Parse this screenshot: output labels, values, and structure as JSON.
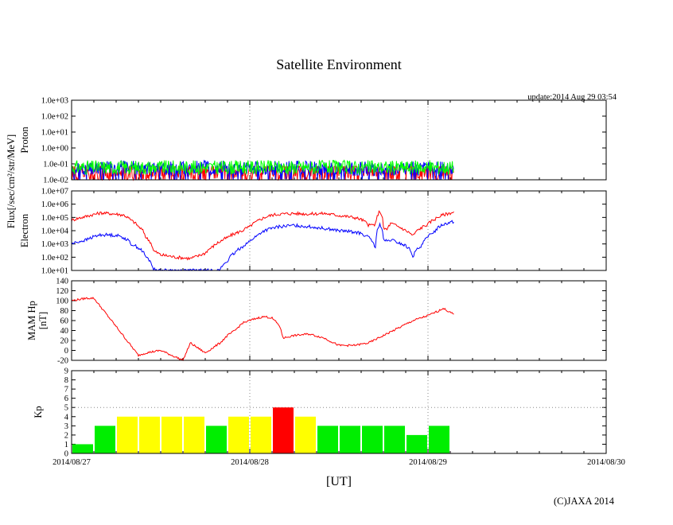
{
  "title": "Satellite Environment",
  "update": "update:2014 Aug 29 03:54",
  "copyright": "(C)JAXA 2014",
  "x_axis": {
    "label": "[UT]",
    "ticks": [
      "2014/08/27",
      "2014/08/28",
      "2014/08/29",
      "2014/08/30"
    ],
    "range_hours": [
      0,
      72
    ]
  },
  "shared_ylabel": "Flux[/sec/cm²/str/MeV]",
  "colors": {
    "red": "#ff0000",
    "blue": "#0000ff",
    "green": "#00ff00",
    "kp_green": "#00ee00",
    "kp_yellow": "#ffff00",
    "kp_red": "#ff0000"
  },
  "chart_data": [
    {
      "type": "line",
      "name": "proton",
      "ylabel": "Proton",
      "yscale": "log",
      "ylim": [
        0.01,
        1000
      ],
      "ytick_labels": [
        "1.0e-02",
        "1.0e-01",
        "1.0e+00",
        "1.0e+01",
        "1.0e+02",
        "1.0e+03"
      ],
      "grid": "dotted vertical at day boundaries",
      "x_hours": [
        0,
        6,
        12,
        18,
        24,
        30,
        36,
        42,
        48,
        51.5
      ],
      "series": [
        {
          "color": "#ff0000",
          "values": [
            0.02,
            0.02,
            0.02,
            0.02,
            0.02,
            0.02,
            0.02,
            0.02,
            0.02,
            0.02
          ]
        },
        {
          "color": "#0000ff",
          "values": [
            0.05,
            0.06,
            0.05,
            0.06,
            0.05,
            0.06,
            0.05,
            0.05,
            0.05,
            0.05
          ]
        },
        {
          "color": "#00ff00",
          "values": [
            0.06,
            0.06,
            0.06,
            0.06,
            0.06,
            0.06,
            0.06,
            0.06,
            0.06,
            0.06
          ]
        }
      ]
    },
    {
      "type": "line",
      "name": "electron",
      "ylabel": "Electron",
      "yscale": "log",
      "ylim": [
        10,
        10000000
      ],
      "ytick_labels": [
        "1.0e+01",
        "1.0e+02",
        "1.0e+03",
        "1.0e+04",
        "1.0e+05",
        "1.0e+06",
        "1.0e+07"
      ],
      "x_hours": [
        0,
        2,
        4,
        6,
        7,
        8,
        9,
        10,
        11,
        12,
        14,
        16,
        17,
        18,
        19,
        20,
        21,
        22,
        23,
        24,
        25,
        26,
        27,
        28,
        30,
        32,
        34,
        36,
        38,
        39,
        40,
        41,
        41.5,
        42,
        42.5,
        43,
        44,
        45,
        46,
        47,
        48,
        49,
        50,
        51.5
      ],
      "series": [
        {
          "color": "#ff0000",
          "values": [
            60000,
            120000,
            220000,
            180000,
            150000,
            60000,
            20000,
            3000,
            300,
            150,
            100,
            80,
            120,
            200,
            600,
            1500,
            3000,
            6000,
            10000,
            20000,
            50000,
            100000,
            150000,
            180000,
            200000,
            180000,
            200000,
            140000,
            100000,
            70000,
            25000,
            30000,
            300000,
            15000,
            12000,
            35000,
            20000,
            10000,
            4000,
            15000,
            30000,
            80000,
            150000,
            250000
          ]
        },
        {
          "color": "#0000ff",
          "values": [
            1000,
            2000,
            5000,
            4500,
            3000,
            1000,
            500,
            100,
            12,
            10,
            10,
            10,
            10,
            10,
            10,
            10,
            50,
            200,
            600,
            1500,
            4000,
            10000,
            15000,
            20000,
            25000,
            20000,
            15000,
            10000,
            8000,
            6000,
            3000,
            200,
            30000,
            2000,
            1500,
            2000,
            1200,
            700,
            100,
            600,
            3000,
            10000,
            30000,
            50000
          ]
        }
      ]
    },
    {
      "type": "line",
      "name": "mam_hp",
      "ylabel": "MAM Hp [nT]",
      "ylabel_lines": [
        "MAM Hp",
        "[nT]"
      ],
      "yscale": "linear",
      "ylim": [
        -20,
        140
      ],
      "yticks": [
        -20,
        0,
        20,
        40,
        60,
        80,
        100,
        120,
        140
      ],
      "x_hours": [
        0,
        2,
        3,
        6,
        9,
        10,
        12,
        15,
        16,
        18,
        20,
        21,
        22,
        23,
        24,
        25,
        26,
        27,
        28,
        28.5,
        30,
        32,
        34,
        36,
        38,
        40,
        42,
        44,
        46,
        48,
        49.5,
        50,
        51.5
      ],
      "series": [
        {
          "color": "#ff0000",
          "values": [
            100,
            105,
            105,
            48,
            -10,
            -5,
            0,
            -20,
            15,
            -5,
            15,
            30,
            40,
            55,
            60,
            65,
            68,
            65,
            50,
            25,
            30,
            33,
            25,
            10,
            10,
            15,
            30,
            45,
            60,
            70,
            80,
            85,
            72
          ]
        }
      ]
    },
    {
      "type": "bar",
      "name": "kp",
      "ylabel": "Kp",
      "ylim": [
        0,
        9
      ],
      "yticks": [
        0,
        1,
        2,
        3,
        4,
        5,
        6,
        7,
        8,
        9
      ],
      "reference_line": 5,
      "bar_width_hours": 3,
      "x_hours": [
        0,
        3,
        6,
        9,
        12,
        15,
        18,
        21,
        24,
        27,
        30,
        33,
        36,
        39,
        42,
        45,
        48
      ],
      "values": [
        1,
        3,
        4,
        4,
        4,
        4,
        3,
        4,
        4,
        5,
        4,
        3,
        3,
        3,
        3,
        2,
        3
      ]
    }
  ]
}
